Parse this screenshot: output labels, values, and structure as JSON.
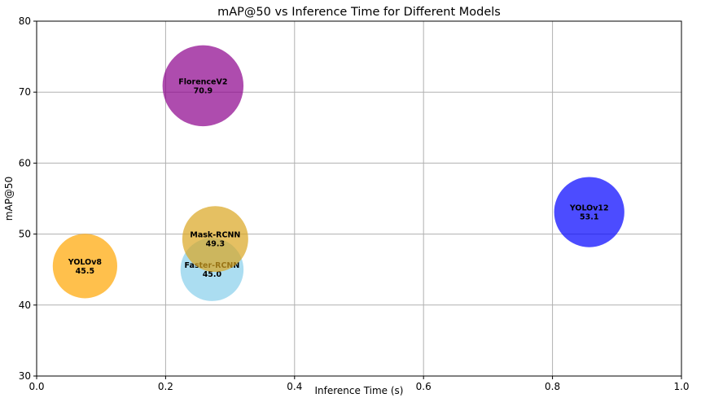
{
  "chart_data": {
    "type": "scatter",
    "title": "mAP@50 vs Inference Time for Different Models",
    "xlabel": "Inference Time (s)",
    "ylabel": "mAP@50",
    "xlim": [
      0.0,
      1.0
    ],
    "ylim": [
      30,
      80
    ],
    "xticks": [
      "0.0",
      "0.2",
      "0.4",
      "0.6",
      "0.8",
      "1.0"
    ],
    "yticks": [
      "30",
      "40",
      "50",
      "60",
      "70",
      "80"
    ],
    "grid": true,
    "points": [
      {
        "name": "YOLOv8",
        "x": 0.075,
        "y": 45.5,
        "value_label": "45.5",
        "color": "#FFA500",
        "relative_size": 0.9
      },
      {
        "name": "Faster-RCNN",
        "x": 0.272,
        "y": 45.0,
        "value_label": "45.0",
        "color": "#87CEEB",
        "relative_size": 0.88
      },
      {
        "name": "Mask-RCNN",
        "x": 0.277,
        "y": 49.3,
        "value_label": "49.3",
        "color": "#DAA520",
        "relative_size": 0.92
      },
      {
        "name": "FlorenceV2",
        "x": 0.258,
        "y": 70.9,
        "value_label": "70.9",
        "color": "#8B008B",
        "relative_size": 1.13
      },
      {
        "name": "YOLOv12",
        "x": 0.857,
        "y": 53.1,
        "value_label": "53.1",
        "color": "#0000FF",
        "relative_size": 0.98
      }
    ]
  }
}
